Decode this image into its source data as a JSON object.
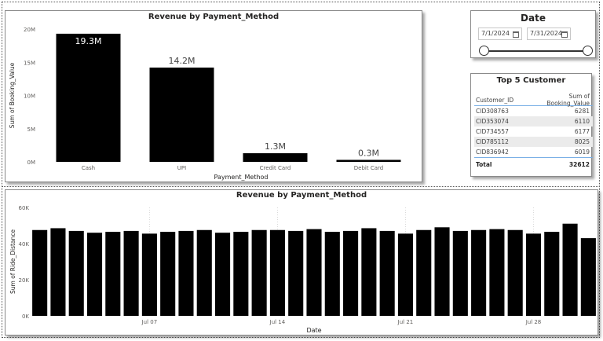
{
  "top_chart": {
    "title": "Revenue by Payment_Method",
    "xlabel": "Payment_Method",
    "ylabel": "Sum of Booking_Value",
    "y_ticks": [
      "0M",
      "5M",
      "10M",
      "15M",
      "20M"
    ]
  },
  "bottom_chart": {
    "title": "Revenue by Payment_Method",
    "xlabel": "Date",
    "ylabel": "Sum of Ride_Distance",
    "y_ticks": [
      "0K",
      "20K",
      "40K",
      "60K"
    ],
    "x_ticks": [
      "Jul 07",
      "Jul 14",
      "Jul 21",
      "Jul 28"
    ]
  },
  "date_slicer": {
    "title": "Date",
    "start": "7/1/2024",
    "end": "7/31/2024"
  },
  "top5": {
    "title": "Top 5 Customer",
    "headers": [
      "Customer_ID",
      "Sum of Booking_Value"
    ],
    "rows": [
      {
        "id": "CID308763",
        "value": "6281"
      },
      {
        "id": "CID353074",
        "value": "6110"
      },
      {
        "id": "CID734557",
        "value": "6177"
      },
      {
        "id": "CID785112",
        "value": "8025"
      },
      {
        "id": "CID836942",
        "value": "6019"
      }
    ],
    "total_label": "Total",
    "total_value": "32612"
  },
  "colors": {
    "bar": "#000000",
    "text": "#252423",
    "axis": "#605e5c",
    "grid": "#e1e1e1",
    "header_line": "#7ab0e6"
  },
  "chart_data": [
    {
      "type": "bar",
      "title": "Revenue by Payment_Method",
      "xlabel": "Payment_Method",
      "ylabel": "Sum of Booking_Value",
      "categories": [
        "Cash",
        "UPI",
        "Credit Card",
        "Debit Card"
      ],
      "values": [
        19.3,
        14.2,
        1.3,
        0.3
      ],
      "labels": [
        "19.3M",
        "14.2M",
        "1.3M",
        "0.3M"
      ],
      "unit": "M",
      "ylim": [
        0,
        20
      ]
    },
    {
      "type": "bar",
      "title": "Revenue by Payment_Method",
      "xlabel": "Date",
      "ylabel": "Sum of Ride_Distance",
      "x": [
        "2024-07-01",
        "2024-07-02",
        "2024-07-03",
        "2024-07-04",
        "2024-07-05",
        "2024-07-06",
        "2024-07-07",
        "2024-07-08",
        "2024-07-09",
        "2024-07-10",
        "2024-07-11",
        "2024-07-12",
        "2024-07-13",
        "2024-07-14",
        "2024-07-15",
        "2024-07-16",
        "2024-07-17",
        "2024-07-18",
        "2024-07-19",
        "2024-07-20",
        "2024-07-21",
        "2024-07-22",
        "2024-07-23",
        "2024-07-24",
        "2024-07-25",
        "2024-07-26",
        "2024-07-27",
        "2024-07-28",
        "2024-07-29",
        "2024-07-30",
        "2024-07-31"
      ],
      "values": [
        47.5,
        48.5,
        47,
        46,
        46.5,
        47,
        45.5,
        46.5,
        47,
        47.5,
        46,
        46.5,
        47.5,
        47.5,
        47,
        48,
        46.5,
        47,
        48.5,
        47,
        45.5,
        47.5,
        49,
        47,
        47.5,
        48,
        47.5,
        45.5,
        46.5,
        51,
        43
      ],
      "ylim": [
        0,
        60
      ],
      "unit": "K",
      "x_ticks": [
        "Jul 07",
        "Jul 14",
        "Jul 21",
        "Jul 28"
      ]
    }
  ]
}
